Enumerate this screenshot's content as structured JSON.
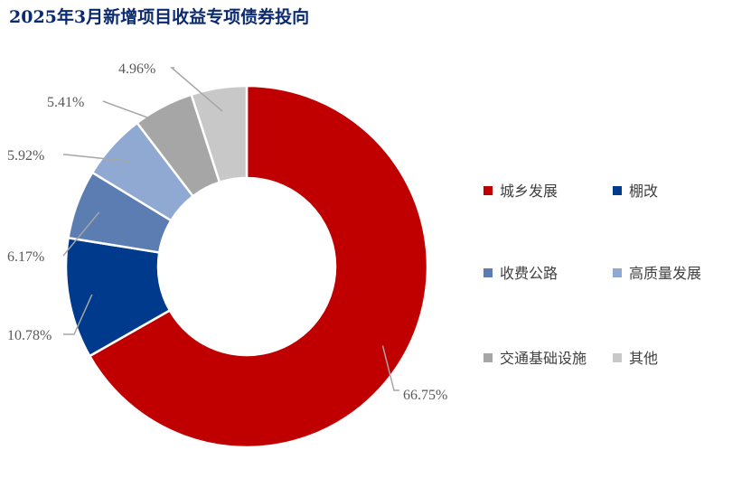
{
  "chart_data": {
    "type": "pie",
    "title": "2025年3月新增项目收益专项债券投向",
    "categories": [
      "城乡发展",
      "棚改",
      "收费公路",
      "高质量发展",
      "交通基础设施",
      "其他"
    ],
    "values": [
      66.75,
      10.78,
      6.17,
      5.92,
      5.41,
      4.96
    ],
    "value_labels": [
      "66.75%",
      "10.78%",
      "6.17%",
      "5.92%",
      "5.41%",
      "4.96%"
    ],
    "colors": [
      "#c00000",
      "#003a8c",
      "#5b7db1",
      "#8fa9d2",
      "#a6a6a6",
      "#c8c8c8"
    ],
    "donut": true,
    "legend_position": "right",
    "start_angle": "12 o'clock",
    "direction": "clockwise"
  }
}
